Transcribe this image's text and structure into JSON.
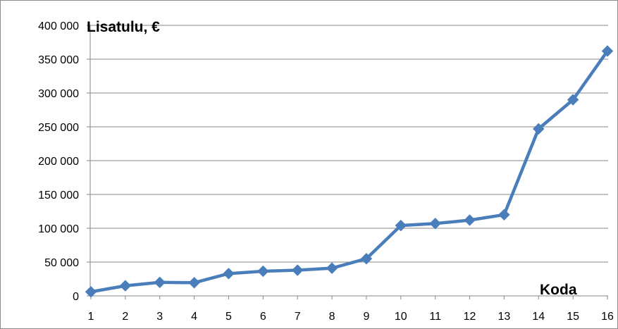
{
  "chart_data": {
    "type": "line",
    "title": "",
    "ylabel": "Lisatulu, €",
    "xlabel": "Koda",
    "categories": [
      "1",
      "2",
      "3",
      "4",
      "5",
      "6",
      "7",
      "8",
      "9",
      "10",
      "11",
      "12",
      "13",
      "14",
      "15",
      "16"
    ],
    "series": [
      {
        "values": [
          6000,
          15000,
          20000,
          19500,
          33000,
          36500,
          38000,
          41000,
          55000,
          104000,
          107000,
          112000,
          120000,
          247000,
          290000,
          362000
        ]
      }
    ],
    "ylim": [
      0,
      400000
    ],
    "ytick_values": [
      0,
      50000,
      100000,
      150000,
      200000,
      250000,
      300000,
      350000,
      400000
    ],
    "ytick_labels": [
      "0",
      "50 000",
      "100 000",
      "150 000",
      "200 000",
      "250 000",
      "300 000",
      "350 000",
      "400 000"
    ],
    "grid": true,
    "legend": "none",
    "colors": {
      "line": "#4a7ebb",
      "grid": "#868686",
      "axis": "#868686"
    }
  }
}
